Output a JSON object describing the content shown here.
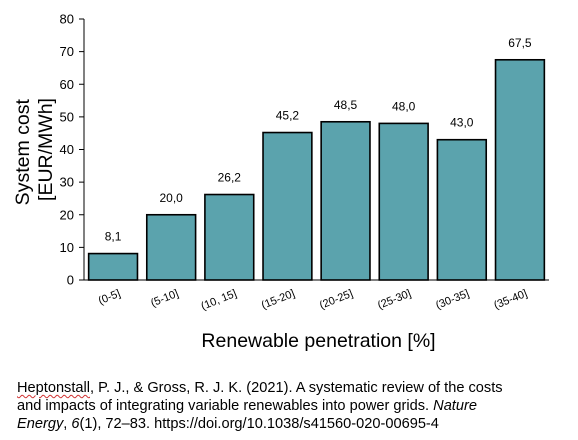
{
  "chart_data": {
    "type": "bar",
    "title": "",
    "xlabel": "Renewable penetration [%]",
    "ylabel_line1": "System cost",
    "ylabel_line2": "[EUR/MWh]",
    "ylim": [
      0,
      80
    ],
    "yticks": [
      0,
      10,
      20,
      30,
      40,
      50,
      60,
      70,
      80
    ],
    "ytick_labels": [
      "0",
      "10",
      "20",
      "30",
      "40",
      "50",
      "60",
      "70",
      "80"
    ],
    "categories": [
      "(0-5]",
      "(5-10]",
      "(10, 15]",
      "(15-20]",
      "(20-25]",
      "(25-30]",
      "(30-35]",
      "(35-40]"
    ],
    "values": [
      8.1,
      20.0,
      26.2,
      45.2,
      48.5,
      48.0,
      43.0,
      67.5
    ],
    "data_labels": [
      "8,1",
      "20,0",
      "26,2",
      "45,2",
      "48,5",
      "48,0",
      "43,0",
      "67,5"
    ],
    "bar_color": "#5ba3ad",
    "grid": false,
    "legend": "none"
  },
  "caption": {
    "authors": "Heptonstall",
    "line1_rest": ", P. J., & Gross, R. J. K. (2021). A systematic review of the costs",
    "line2_main": "and impacts of integrating variable renewables into power grids. ",
    "journal_line2": "Nature",
    "journal_line3": "Energy",
    "line3_mid": ", ",
    "volume": "6",
    "line3_rest": "(1), 72–83. https://doi.org/10.1038/s41560-020-00695-4"
  }
}
